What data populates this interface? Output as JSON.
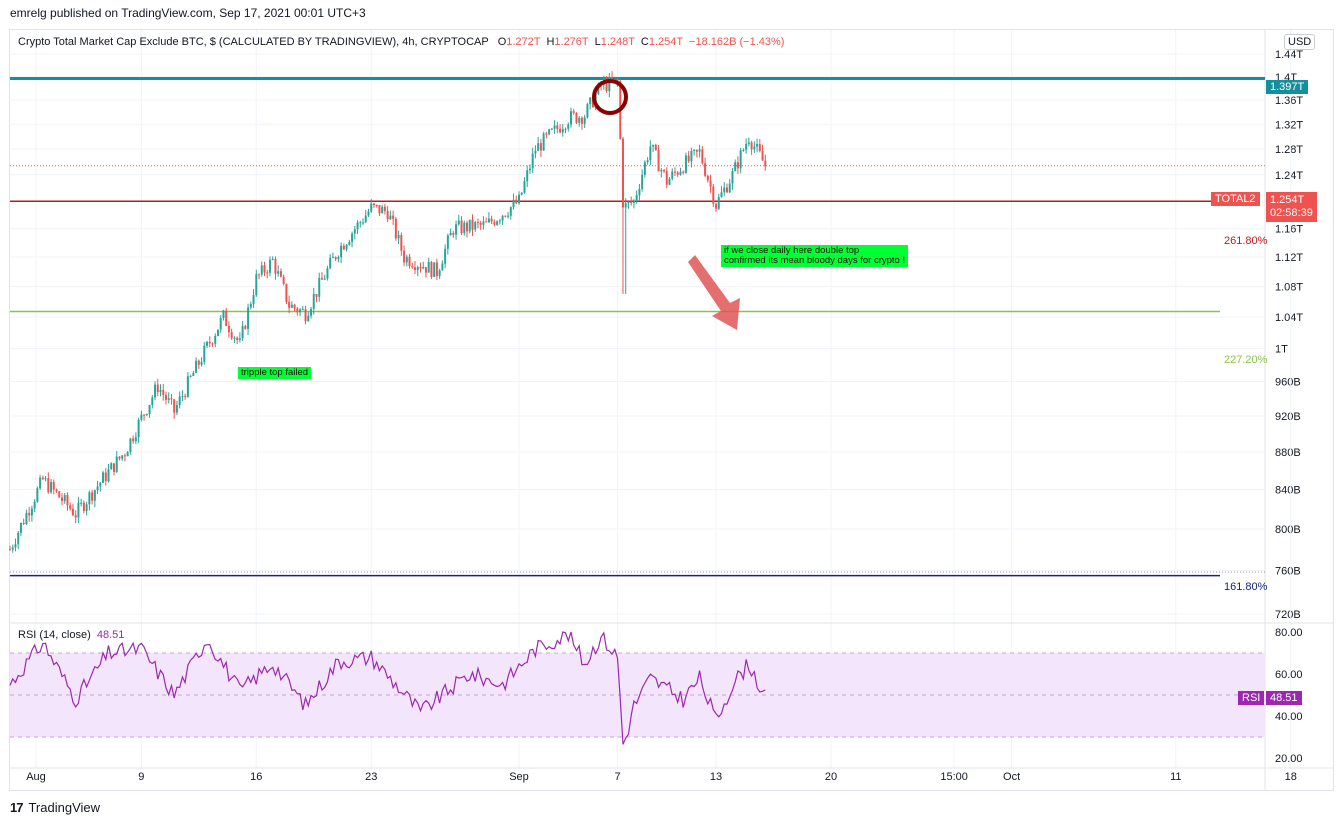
{
  "header": {
    "published": "emrelg published on TradingView.com, Sep 17, 2021 00:01 UTC+3"
  },
  "legend": {
    "title": "Crypto Total Market Cap Exclude BTC, $ (CALCULATED BY TRADINGVIEW), 4h, CRYPTOCAP",
    "o_label": "O",
    "o": "1.272T",
    "h_label": "H",
    "h": "1.276T",
    "l_label": "L",
    "l": "1.248T",
    "c_label": "C",
    "c": "1.254T",
    "change": "−18.162B (−1.43%)"
  },
  "currency": "USD",
  "price_tags": {
    "level": "1.397T",
    "symbol": "TOTAL2",
    "last": "1.254T",
    "countdown": "02:58:39"
  },
  "fib_labels": {
    "f261": "261.80%",
    "f227": "227.20%",
    "f161": "161.80%"
  },
  "annotations": {
    "tripple": "tripple top failed",
    "doubletop_line1": "if we close daily here double top",
    "doubletop_line2": "confirmed its mean bloody days for crypto !"
  },
  "rsi": {
    "label": "RSI (14, close)",
    "value": "48.51",
    "tag": "RSI"
  },
  "footer": {
    "brand": "TradingView"
  },
  "colors": {
    "up": "#26a69a",
    "down": "#ef5350",
    "level": "#138f9e",
    "fib261": "#b71c1c",
    "fib227": "#8bc34a",
    "fib161": "#1a237e",
    "rsi": "#9c27b0",
    "note": "#00ff33",
    "arrow": "#e05555"
  },
  "chart_data": [
    {
      "type": "candlestick",
      "title": "Crypto Total Market Cap Exclude BTC, $ (CALCULATED BY TRADINGVIEW), 4h, CRYPTOCAP",
      "y_unit": "USD",
      "y_ticks": [
        "1.44T",
        "1.4T",
        "1.36T",
        "1.32T",
        "1.28T",
        "1.24T",
        "1.2T",
        "1.16T",
        "1.12T",
        "1.08T",
        "1.04T",
        "1T",
        "960B",
        "920B",
        "880B",
        "840B",
        "800B",
        "760B",
        "720B"
      ],
      "y_tick_values": [
        1440,
        1400,
        1360,
        1320,
        1280,
        1240,
        1200,
        1160,
        1120,
        1080,
        1040,
        1000,
        960,
        920,
        880,
        840,
        800,
        760,
        720
      ],
      "x_ticks": [
        "Aug",
        "9",
        "16",
        "23",
        "Sep",
        "7",
        "13",
        "20",
        "15:00",
        "Oct",
        "11",
        "18"
      ],
      "horizontal_levels": [
        {
          "name": "1.397T",
          "value": 1397
        },
        {
          "name": "261.80%",
          "value": 1200
        },
        {
          "name": "227.20%",
          "value": 1047
        },
        {
          "name": "161.80%",
          "value": 755
        }
      ],
      "anchors": [
        {
          "date": "Aug 1",
          "price": 780
        },
        {
          "date": "Aug 3",
          "price": 850
        },
        {
          "date": "Aug 5",
          "price": 815
        },
        {
          "date": "Aug 8",
          "price": 880
        },
        {
          "date": "Aug 10",
          "price": 955
        },
        {
          "date": "Aug 11",
          "price": 925
        },
        {
          "date": "Aug 14",
          "price": 1040
        },
        {
          "date": "Aug 15",
          "price": 1005
        },
        {
          "date": "Aug 16",
          "price": 1090
        },
        {
          "date": "Aug 17",
          "price": 1115
        },
        {
          "date": "Aug 18",
          "price": 1055
        },
        {
          "date": "Aug 19",
          "price": 1045
        },
        {
          "date": "Aug 21",
          "price": 1130
        },
        {
          "date": "Aug 23",
          "price": 1190
        },
        {
          "date": "Aug 24",
          "price": 1185
        },
        {
          "date": "Aug 25",
          "price": 1120
        },
        {
          "date": "Aug 27",
          "price": 1100
        },
        {
          "date": "Aug 28",
          "price": 1160
        },
        {
          "date": "Aug 30",
          "price": 1165
        },
        {
          "date": "Sep 1",
          "price": 1200
        },
        {
          "date": "Sep 2",
          "price": 1280
        },
        {
          "date": "Sep 4",
          "price": 1330
        },
        {
          "date": "Sep 5",
          "price": 1335
        },
        {
          "date": "Sep 6",
          "price": 1385
        },
        {
          "date": "Sep 7",
          "price": 1390
        },
        {
          "date": "Sep 7",
          "price": 1190
        },
        {
          "date": "Sep 8",
          "price": 1200
        },
        {
          "date": "Sep 9",
          "price": 1285
        },
        {
          "date": "Sep 10",
          "price": 1230
        },
        {
          "date": "Sep 11",
          "price": 1255
        },
        {
          "date": "Sep 12",
          "price": 1275
        },
        {
          "date": "Sep 13",
          "price": 1195
        },
        {
          "date": "Sep 14",
          "price": 1240
        },
        {
          "date": "Sep 15",
          "price": 1300
        },
        {
          "date": "Sep 16",
          "price": 1254
        }
      ],
      "last_close": 1254
    },
    {
      "type": "line",
      "name": "RSI (14, close)",
      "y_ticks": [
        "80.00",
        "60.00",
        "40.00",
        "20.00"
      ],
      "y_tick_values": [
        80,
        60,
        40,
        20
      ],
      "bands": [
        70,
        50,
        30
      ],
      "anchors": [
        {
          "date": "Aug 1",
          "value": 55
        },
        {
          "date": "Aug 3",
          "value": 75
        },
        {
          "date": "Aug 5",
          "value": 48
        },
        {
          "date": "Aug 7",
          "value": 70
        },
        {
          "date": "Aug 9",
          "value": 72
        },
        {
          "date": "Aug 11",
          "value": 50
        },
        {
          "date": "Aug 13",
          "value": 77
        },
        {
          "date": "Aug 15",
          "value": 52
        },
        {
          "date": "Aug 17",
          "value": 65
        },
        {
          "date": "Aug 19",
          "value": 45
        },
        {
          "date": "Aug 21",
          "value": 66
        },
        {
          "date": "Aug 23",
          "value": 68
        },
        {
          "date": "Aug 26",
          "value": 42
        },
        {
          "date": "Aug 29",
          "value": 60
        },
        {
          "date": "Aug 31",
          "value": 55
        },
        {
          "date": "Sep 2",
          "value": 72
        },
        {
          "date": "Sep 4",
          "value": 79
        },
        {
          "date": "Sep 5",
          "value": 65
        },
        {
          "date": "Sep 6",
          "value": 78
        },
        {
          "date": "Sep 7",
          "value": 68
        },
        {
          "date": "Sep 7",
          "value": 25
        },
        {
          "date": "Sep 8",
          "value": 45
        },
        {
          "date": "Sep 9",
          "value": 58
        },
        {
          "date": "Sep 11",
          "value": 48
        },
        {
          "date": "Sep 12",
          "value": 58
        },
        {
          "date": "Sep 13",
          "value": 38
        },
        {
          "date": "Sep 14",
          "value": 55
        },
        {
          "date": "Sep 15",
          "value": 65
        },
        {
          "date": "Sep 16",
          "value": 48.51
        }
      ]
    }
  ]
}
